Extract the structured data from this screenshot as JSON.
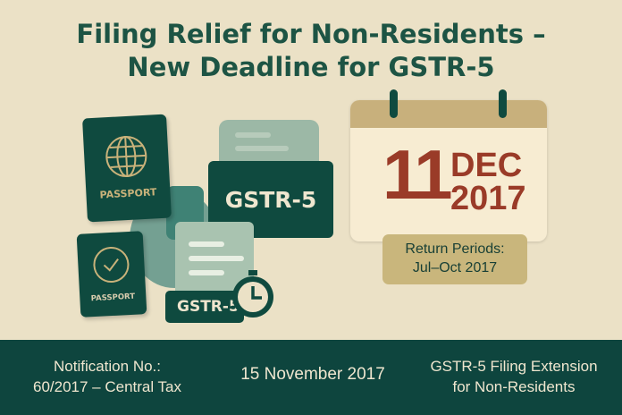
{
  "title": {
    "line1": "Filing Relief for Non-Residents –",
    "line2": "New Deadline for GSTR-5"
  },
  "illustration": {
    "passport_1_label": "PASSPORT",
    "passport_1_icon": "globe-icon",
    "passport_2_label": "PASSPORT",
    "passport_2_icon": "clock-icon",
    "folder_label": "GSTR-5",
    "tag_label": "GSTR-5",
    "stopwatch_icon": "stopwatch-icon"
  },
  "calendar": {
    "day": "11",
    "month": "DEC",
    "year": "2017"
  },
  "badge": {
    "line1": "Return Periods:",
    "line2": "Jul–Oct 2017"
  },
  "footer": {
    "notification_line1": "Notification No.:",
    "notification_line2": "60/2017 – Central Tax",
    "date": "15 November 2017",
    "subject_line1": "GSTR-5 Filing Extension",
    "subject_line2": "for Non-Residents"
  },
  "colors": {
    "primary": "#0f4a3f",
    "background": "#ebe1c6",
    "accent": "#c9b27a",
    "date_red": "#9a3b28"
  }
}
